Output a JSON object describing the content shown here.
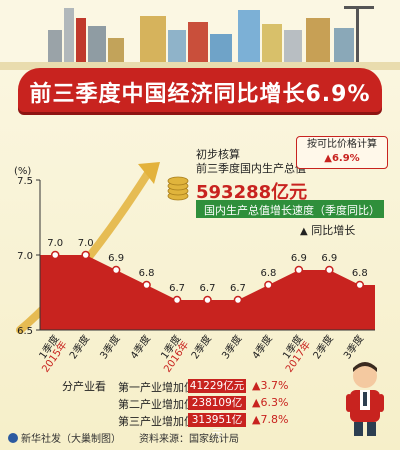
{
  "header": {
    "title": "前三季度中国经济同比增长6.9%"
  },
  "gdp_callout": {
    "line1": "初步核算",
    "line2": "前三季度国内生产总值",
    "value": "593288亿元"
  },
  "price_note": {
    "label": "按可比价格计算",
    "growth": "▲6.9%"
  },
  "chart_header": "国内生产总值增长速度（季度同比）",
  "legend_label": "同比增长",
  "legend_marker": "▲",
  "chart_data": {
    "type": "area",
    "ylabel": "(%)",
    "ylim": [
      6.5,
      7.5
    ],
    "yticks": [
      "7.5",
      "7.0",
      "6.5"
    ],
    "categories": [
      "1季度",
      "2季度",
      "3季度",
      "4季度",
      "1季度",
      "2季度",
      "3季度",
      "4季度",
      "1季度",
      "2季度",
      "3季度"
    ],
    "year_labels": [
      {
        "label": "2015年",
        "index": 0
      },
      {
        "label": "2016年",
        "index": 4
      },
      {
        "label": "2017年",
        "index": 8
      }
    ],
    "values": [
      7.0,
      7.0,
      6.9,
      6.8,
      6.7,
      6.7,
      6.7,
      6.8,
      6.9,
      6.9,
      6.8
    ],
    "value_labels": [
      "7.0",
      "7.0",
      "6.9",
      "6.8",
      "6.7",
      "6.7",
      "6.7",
      "6.8",
      "6.9",
      "6.9",
      "6.8"
    ],
    "fill_color": "#c8231f",
    "marker_color": "#ffffff",
    "axis_color": "#333333",
    "year_color": "#c8231f"
  },
  "sectors": {
    "heading": "分产业看",
    "rows": [
      {
        "name": "第一产业增加值",
        "value": "41229亿元",
        "growth": "▲3.7%"
      },
      {
        "name": "第二产业增加值",
        "value": "238109亿元",
        "growth": "▲6.3%"
      },
      {
        "name": "第三产业增加值",
        "value": "313951亿元",
        "growth": "▲7.8%"
      }
    ]
  },
  "footer": {
    "credit": "新华社发（大巢制图）",
    "source": "资料来源：国家统计局"
  },
  "colors": {
    "banner": "#c8231f",
    "green": "#2f8f3b",
    "accent": "#c8231f"
  }
}
